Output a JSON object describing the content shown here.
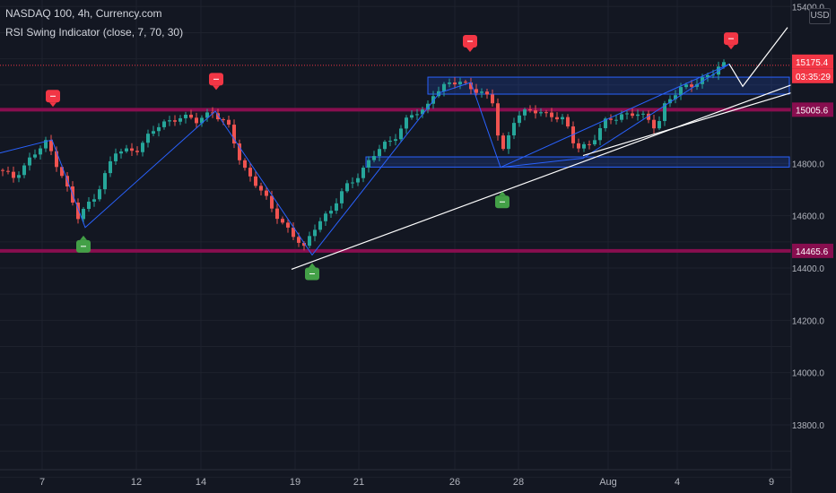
{
  "header": {
    "title": "NASDAQ 100, 4h, Currency.com",
    "indicator": "RSI Swing Indicator (close, 7, 70, 30)"
  },
  "currency": "USD",
  "chart_data": {
    "type": "candlestick",
    "y_axis": {
      "ticks": [
        13800.0,
        14000.0,
        14200.0,
        14400.0,
        14600.0,
        14800.0,
        15000.0,
        15200.0,
        15400.0
      ],
      "range": [
        13645,
        15400
      ]
    },
    "x_axis": {
      "ticks": [
        "7",
        "12",
        "14",
        "19",
        "21",
        "26",
        "28",
        "Aug",
        "4",
        "9"
      ]
    },
    "price_labels": {
      "last_price": "15175.4",
      "countdown": "03:35:29",
      "resistance": "15005.6",
      "support": "14465.6"
    },
    "horizontal_levels": [
      {
        "value": 15005.6,
        "color": "#880e4f"
      },
      {
        "value": 14465.6,
        "color": "#880e4f"
      },
      {
        "value": 15175.4,
        "color": "#f23645",
        "style": "dotted"
      }
    ],
    "zones": [
      {
        "from": 15065,
        "to": 15130,
        "color": "#2962ff"
      },
      {
        "from": 14786,
        "to": 14825,
        "color": "#2962ff"
      }
    ],
    "swing_signals": [
      {
        "type": "sell",
        "price": 15040
      },
      {
        "type": "sell",
        "price": 15105
      },
      {
        "type": "sell",
        "price": 15250
      },
      {
        "type": "sell",
        "price": 15260
      },
      {
        "type": "buy",
        "price": 14500
      },
      {
        "type": "buy",
        "price": 14395
      },
      {
        "type": "buy",
        "price": 14670
      }
    ],
    "colors": {
      "background": "#131722",
      "up": "#26a69a",
      "down": "#ef5350",
      "zigzag": "#2962ff",
      "trendline": "#ffffff",
      "level": "#880e4f"
    }
  }
}
